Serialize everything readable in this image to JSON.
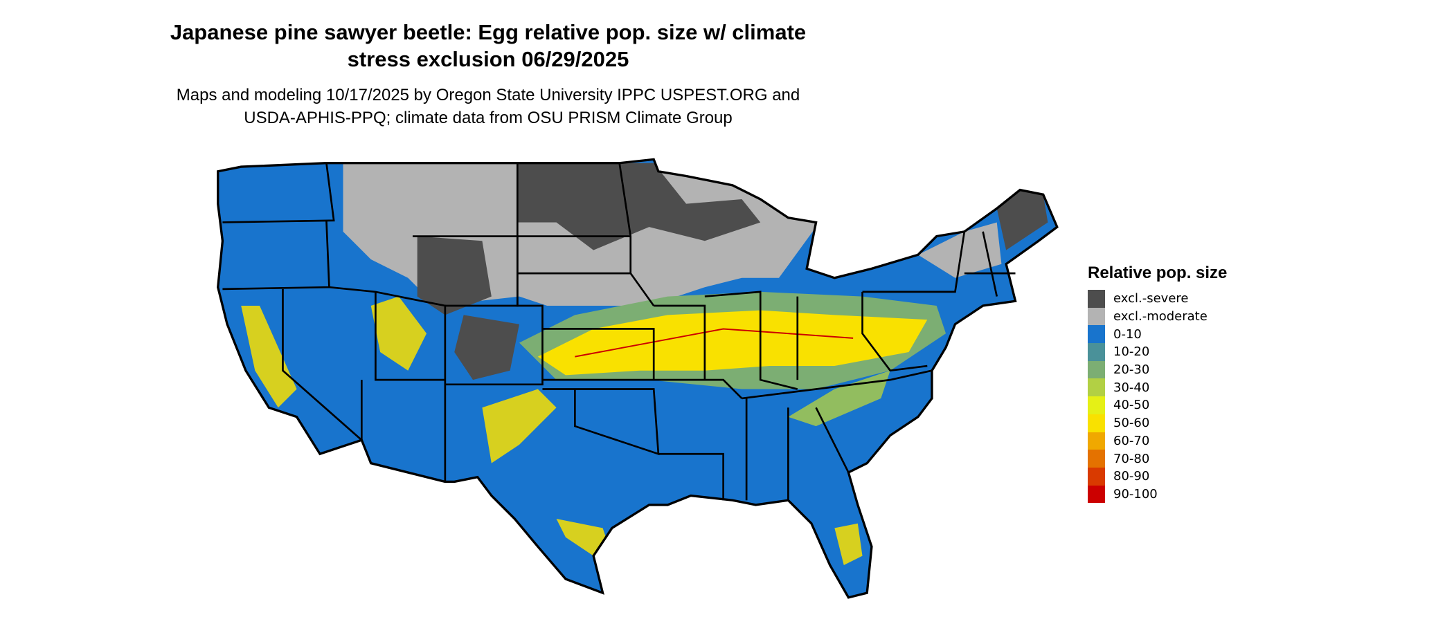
{
  "chart_data": {
    "type": "map",
    "title": "Japanese pine sawyer beetle: Egg relative pop. size w/ climate stress exclusion 06/29/2025",
    "title_lines": [
      "Japanese pine sawyer beetle: Egg relative pop. size w/ climate",
      "stress exclusion 06/29/2025"
    ],
    "subtitle_lines": [
      "Maps and modeling 10/17/2025 by Oregon State University IPPC USPEST.ORG and",
      "USDA-APHIS-PPQ; climate data from OSU PRISM Climate Group"
    ],
    "region": "Contiguous United States",
    "legend": {
      "title": "Relative pop. size",
      "placement": "right",
      "items": [
        {
          "label": "excl.-severe",
          "color": "#4d4d4d"
        },
        {
          "label": "excl.-moderate",
          "color": "#b3b3b3"
        },
        {
          "label": "0-10",
          "color": "#1874cd"
        },
        {
          "label": "10-20",
          "color": "#4a9199"
        },
        {
          "label": "20-30",
          "color": "#7cae73"
        },
        {
          "label": "30-40",
          "color": "#b2d044"
        },
        {
          "label": "40-50",
          "color": "#e5f016"
        },
        {
          "label": "50-60",
          "color": "#f9e100"
        },
        {
          "label": "60-70",
          "color": "#f0a800"
        },
        {
          "label": "70-80",
          "color": "#e47200"
        },
        {
          "label": "80-90",
          "color": "#d93a00"
        },
        {
          "label": "90-100",
          "color": "#cc0000"
        }
      ]
    }
  }
}
